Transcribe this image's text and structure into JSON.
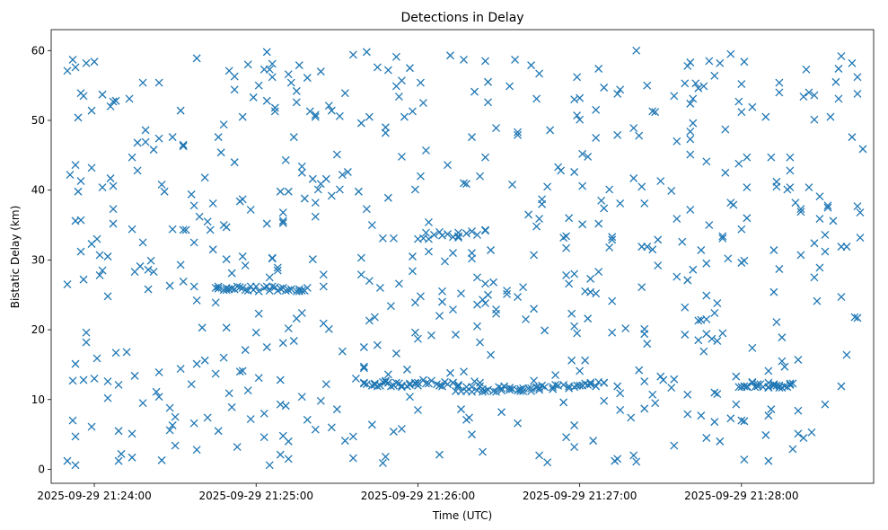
{
  "chart_data": {
    "type": "scatter",
    "title": "Detections in Delay",
    "xlabel": "Time (UTC)",
    "ylabel": "Bistatic Delay (km)",
    "marker": "x",
    "color": "#1f77b4",
    "grid": false,
    "xlim": [
      "2025-09-29 21:23:44",
      "2025-09-29 21:28:49"
    ],
    "ylim": [
      -2,
      63
    ],
    "xticks": [
      "2025-09-29 21:24:00",
      "2025-09-29 21:25:00",
      "2025-09-29 21:26:00",
      "2025-09-29 21:27:00",
      "2025-09-29 21:28:00"
    ],
    "yticks": [
      0,
      10,
      20,
      30,
      40,
      50,
      60
    ],
    "series_note": "scattered noise plus tracks near 26 km (21:24:45-21:25:20), 12 km (21:25:40-21:26:00 and 21:28:00-21:28:20), 11.5-12 km (21:26:15-21:27:10), 33 km (21:26:00-21:26:25)",
    "x": [],
    "y": []
  }
}
